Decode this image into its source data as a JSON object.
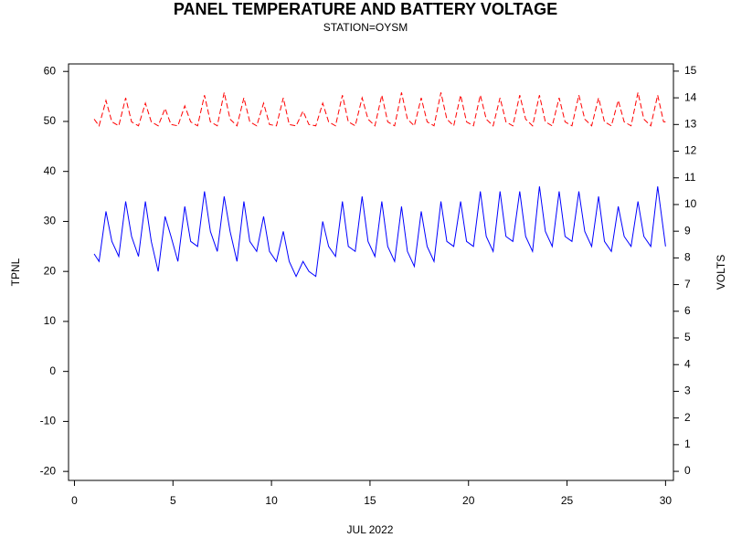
{
  "chart_data": {
    "type": "line",
    "title": "PANEL TEMPERATURE AND BATTERY VOLTAGE",
    "subtitle": "STATION=OYSM",
    "x_label": "JUL 2022",
    "y_label": "TPNL",
    "y2_label": "VOLTS",
    "xlim": [
      -0.3,
      30.4
    ],
    "xticks": [
      0,
      5,
      10,
      15,
      20,
      25,
      30
    ],
    "ylim": [
      -21.8,
      61.5
    ],
    "yticks": [
      -20,
      -10,
      0,
      10,
      20,
      30,
      40,
      50,
      60
    ],
    "y2lim": [
      -0.34,
      15.27
    ],
    "y2ticks": [
      0,
      1,
      2,
      3,
      4,
      5,
      6,
      7,
      8,
      9,
      10,
      11,
      12,
      13,
      14,
      15
    ],
    "x": [
      1.0,
      1.25,
      1.6,
      1.9,
      2.25,
      2.6,
      2.9,
      3.25,
      3.6,
      3.9,
      4.25,
      4.6,
      4.9,
      5.25,
      5.6,
      5.9,
      6.25,
      6.6,
      6.9,
      7.25,
      7.6,
      7.9,
      8.25,
      8.6,
      8.9,
      9.25,
      9.6,
      9.9,
      10.25,
      10.6,
      10.9,
      11.25,
      11.6,
      11.9,
      12.25,
      12.6,
      12.9,
      13.25,
      13.6,
      13.9,
      14.25,
      14.6,
      14.9,
      15.25,
      15.6,
      15.9,
      16.25,
      16.6,
      16.9,
      17.25,
      17.6,
      17.9,
      18.25,
      18.6,
      18.9,
      19.25,
      19.6,
      19.9,
      20.25,
      20.6,
      20.9,
      21.25,
      21.6,
      21.9,
      22.25,
      22.6,
      22.9,
      23.25,
      23.6,
      23.9,
      24.25,
      24.6,
      24.9,
      25.25,
      25.6,
      25.9,
      26.25,
      26.6,
      26.9,
      27.25,
      27.6,
      27.9,
      28.25,
      28.6,
      28.9,
      29.25,
      29.6,
      29.9,
      30.0
    ],
    "series": [
      {
        "name": "TPNL",
        "color": "#0000ff",
        "dashed": false,
        "values": [
          23.5,
          22,
          32,
          26,
          23,
          34,
          27,
          23,
          34,
          26,
          20,
          31,
          27,
          22,
          33,
          26,
          25,
          36,
          28,
          24,
          35,
          28,
          22,
          34,
          26,
          24,
          31,
          24,
          22,
          28,
          22,
          19,
          22,
          20,
          19,
          30,
          25,
          23,
          34,
          25,
          24,
          35,
          26,
          23,
          34,
          25,
          22,
          33,
          24,
          21,
          32,
          25,
          22,
          34,
          26,
          25,
          34,
          26,
          25,
          36,
          27,
          24,
          36,
          27,
          26,
          36,
          27,
          24,
          37,
          28,
          25,
          36,
          27,
          26,
          36,
          28,
          25,
          35,
          26,
          24,
          33,
          27,
          25,
          34,
          27,
          25,
          37,
          28,
          25
        ]
      },
      {
        "name": "VOLTS",
        "color": "#ff0000",
        "dashed": true,
        "axis": "y2",
        "values": [
          13.2,
          12.95,
          13.9,
          13.1,
          12.95,
          14.0,
          13.1,
          12.95,
          13.8,
          13.1,
          12.95,
          13.6,
          13.0,
          12.95,
          13.7,
          13.1,
          12.95,
          14.1,
          13.1,
          12.95,
          14.2,
          13.2,
          12.95,
          14.0,
          13.1,
          12.95,
          13.8,
          13.0,
          12.95,
          14.0,
          13.0,
          12.95,
          13.5,
          13.0,
          12.95,
          13.8,
          13.1,
          12.95,
          14.1,
          13.1,
          12.95,
          14.0,
          13.2,
          12.95,
          14.1,
          13.1,
          12.95,
          14.2,
          13.2,
          12.95,
          14.0,
          13.1,
          12.95,
          14.2,
          13.2,
          12.95,
          14.1,
          13.1,
          12.95,
          14.1,
          13.2,
          12.95,
          14.0,
          13.1,
          12.95,
          14.1,
          13.2,
          12.95,
          14.1,
          13.1,
          12.95,
          14.0,
          13.1,
          12.95,
          14.1,
          13.2,
          12.95,
          14.0,
          13.1,
          12.95,
          13.9,
          13.1,
          12.95,
          14.2,
          13.2,
          12.95,
          14.1,
          13.1,
          13.1
        ]
      }
    ]
  }
}
